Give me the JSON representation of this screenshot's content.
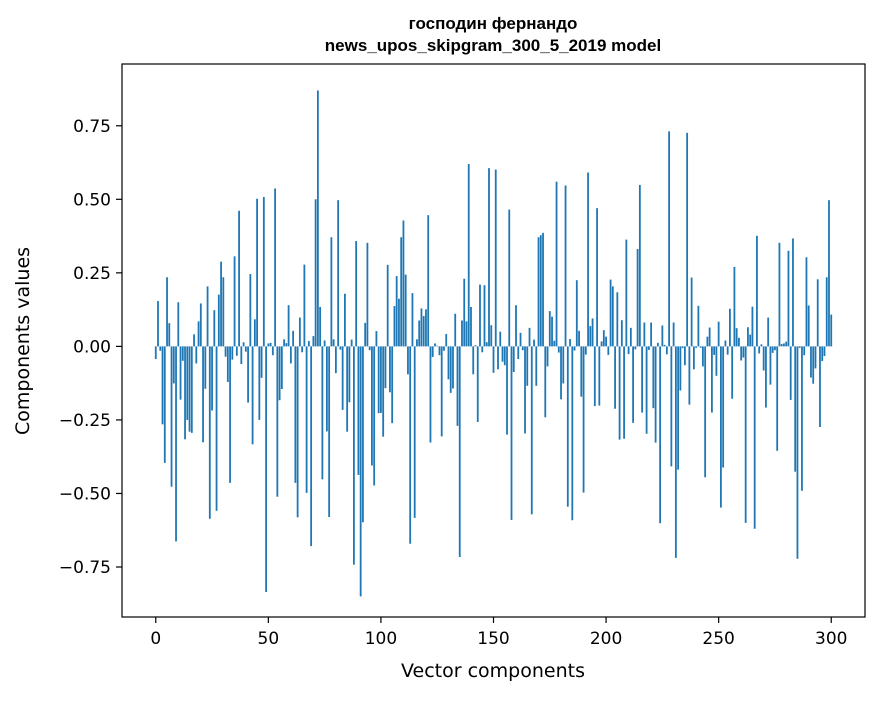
{
  "chart_data": {
    "type": "bar",
    "title_line1": "господин фернандо",
    "title_line2": "news_upos_skipgram_300_5_2019 model",
    "xlabel": "Vector components",
    "ylabel": "Components values",
    "xlim": [
      -15,
      315
    ],
    "ylim": [
      -0.92,
      0.96
    ],
    "xticks": [
      0,
      50,
      100,
      150,
      200,
      250,
      300
    ],
    "xtick_labels": [
      "0",
      "50",
      "100",
      "150",
      "200",
      "250",
      "300"
    ],
    "yticks": [
      -0.75,
      -0.5,
      -0.25,
      0.0,
      0.25,
      0.5,
      0.75
    ],
    "ytick_labels": [
      "−0.75",
      "−0.50",
      "−0.25",
      "0.00",
      "0.25",
      "0.50",
      "0.75"
    ],
    "grid": false,
    "bar_color": "#1f77b4",
    "values": [
      -0.043,
      0.154,
      -0.015,
      -0.265,
      -0.396,
      0.235,
      0.079,
      -0.477,
      -0.126,
      -0.663,
      0.15,
      -0.181,
      -0.049,
      -0.316,
      -0.25,
      -0.29,
      -0.294,
      0.041,
      -0.058,
      0.085,
      0.146,
      -0.326,
      -0.144,
      0.204,
      -0.586,
      -0.218,
      0.123,
      -0.559,
      0.176,
      0.288,
      0.235,
      -0.035,
      -0.121,
      -0.464,
      -0.045,
      0.306,
      -0.032,
      0.461,
      -0.06,
      0.014,
      -0.018,
      -0.191,
      0.246,
      -0.333,
      0.092,
      0.502,
      -0.25,
      -0.107,
      0.508,
      -0.835,
      0.01,
      0.012,
      -0.03,
      0.537,
      -0.511,
      -0.183,
      -0.145,
      0.024,
      0.011,
      0.14,
      -0.058,
      0.053,
      -0.464,
      -0.581,
      0.098,
      -0.02,
      0.278,
      -0.498,
      0.018,
      -0.679,
      0.035,
      0.5,
      0.87,
      0.134,
      -0.452,
      0.02,
      -0.289,
      -0.58,
      0.371,
      0.024,
      -0.091,
      0.497,
      -0.011,
      -0.216,
      0.179,
      -0.29,
      -0.19,
      0.023,
      -0.742,
      0.358,
      -0.437,
      -0.85,
      -0.598,
      0.08,
      0.352,
      -0.013,
      -0.405,
      -0.473,
      0.052,
      -0.227,
      -0.226,
      -0.307,
      -0.142,
      0.277,
      -0.156,
      -0.261,
      0.137,
      0.239,
      0.162,
      0.371,
      0.428,
      0.244,
      -0.095,
      -0.671,
      0.181,
      -0.583,
      0.024,
      0.088,
      0.129,
      0.103,
      0.126,
      0.446,
      -0.327,
      -0.036,
      0.01,
      0.002,
      -0.03,
      -0.306,
      -0.015,
      0.042,
      -0.112,
      -0.158,
      -0.143,
      0.111,
      -0.27,
      -0.716,
      0.088,
      0.23,
      0.085,
      0.62,
      0.134,
      -0.095,
      0.004,
      -0.257,
      0.21,
      -0.02,
      0.208,
      0.014,
      0.606,
      0.072,
      -0.09,
      0.601,
      -0.078,
      0.05,
      -0.052,
      -0.064,
      -0.3,
      0.465,
      -0.59,
      -0.087,
      0.14,
      -0.043,
      0.046,
      -0.013,
      -0.296,
      -0.134,
      0.063,
      -0.571,
      0.023,
      -0.134,
      0.371,
      0.378,
      0.386,
      -0.241,
      -0.068,
      0.12,
      0.101,
      0.019,
      0.56,
      -0.021,
      -0.18,
      -0.126,
      0.547,
      -0.545,
      0.025,
      -0.591,
      -0.014,
      0.225,
      0.053,
      -0.171,
      -0.497,
      -0.028,
      0.591,
      0.069,
      0.095,
      -0.203,
      0.47,
      -0.201,
      0.017,
      0.055,
      0.033,
      -0.029,
      0.227,
      0.204,
      -0.212,
      0.184,
      -0.317,
      0.089,
      -0.314,
      0.363,
      -0.026,
      0.063,
      -0.26,
      -0.01,
      0.331,
      0.549,
      -0.225,
      0.081,
      -0.297,
      -0.012,
      0.081,
      -0.21,
      -0.327,
      0.012,
      -0.601,
      0.071,
      0.005,
      -0.027,
      0.731,
      -0.408,
      0.081,
      -0.719,
      -0.419,
      -0.15,
      -0.006,
      -0.064,
      0.726,
      -0.198,
      0.234,
      -0.078,
      -0.005,
      0.138,
      -0.005,
      -0.068,
      -0.445,
      0.033,
      0.064,
      -0.225,
      -0.029,
      -0.1,
      0.084,
      -0.548,
      -0.412,
      0.02,
      -0.028,
      0.128,
      -0.178,
      0.27,
      0.062,
      0.029,
      -0.048,
      -0.038,
      -0.6,
      0.065,
      0.04,
      0.135,
      -0.62,
      0.376,
      -0.024,
      0.007,
      -0.082,
      -0.208,
      0.098,
      -0.13,
      -0.022,
      -0.013,
      -0.355,
      0.352,
      0.008,
      0.01,
      0.016,
      0.325,
      -0.182,
      0.367,
      -0.426,
      -0.722,
      -0.005,
      -0.491,
      -0.03,
      0.303,
      0.139,
      -0.106,
      -0.127,
      -0.075,
      0.228,
      -0.274,
      -0.05,
      -0.033,
      0.235,
      0.497,
      0.108
    ]
  }
}
